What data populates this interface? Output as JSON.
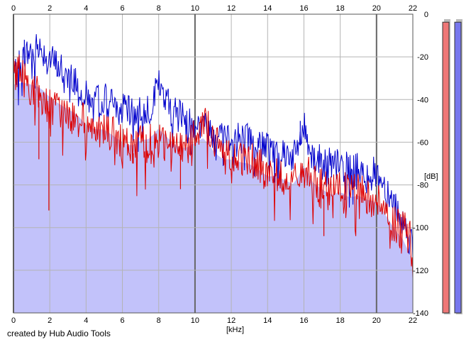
{
  "chart_data": {
    "type": "area",
    "x_unit": "[kHz]",
    "y_unit": "[dB]",
    "xlim": [
      0,
      22
    ],
    "ylim": [
      -140,
      0
    ],
    "x_ticks": [
      0,
      2,
      4,
      6,
      8,
      10,
      12,
      14,
      16,
      18,
      20,
      22
    ],
    "y_ticks": [
      0,
      -20,
      -40,
      -60,
      -80,
      -100,
      -120,
      -140
    ],
    "grid": true,
    "series": [
      {
        "color": "#0000cc",
        "x": [
          0,
          0.5,
          1,
          1.5,
          2,
          2.5,
          3,
          3.5,
          4,
          4.5,
          5,
          5.5,
          6,
          6.5,
          7,
          7.5,
          8,
          8.5,
          9,
          9.5,
          10,
          10.5,
          11,
          11.5,
          12,
          12.5,
          13,
          13.5,
          14,
          14.5,
          15,
          15.5,
          16,
          16.5,
          17,
          17.5,
          18,
          18.5,
          19,
          19.5,
          20,
          20.5,
          21,
          21.5,
          22
        ],
        "values": [
          -28,
          -20,
          -16,
          -15,
          -20,
          -24,
          -27,
          -30,
          -38,
          -40,
          -38,
          -42,
          -44,
          -46,
          -44,
          -43,
          -33,
          -40,
          -46,
          -48,
          -50,
          -52,
          -54,
          -56,
          -56,
          -57,
          -58,
          -60,
          -62,
          -62,
          -64,
          -66,
          -52,
          -66,
          -68,
          -70,
          -70,
          -72,
          -72,
          -74,
          -74,
          -80,
          -88,
          -96,
          -110
        ]
      },
      {
        "color": "#dd0000",
        "x": [
          0,
          0.5,
          1,
          1.5,
          2,
          2.5,
          3,
          3.5,
          4,
          4.5,
          5,
          5.5,
          6,
          6.5,
          7,
          7.5,
          8,
          8.5,
          9,
          9.5,
          10,
          10.5,
          11,
          11.5,
          12,
          12.5,
          13,
          13.5,
          14,
          14.5,
          15,
          15.5,
          16,
          16.5,
          17,
          17.5,
          18,
          18.5,
          19,
          19.5,
          20,
          20.5,
          21,
          21.5,
          22
        ],
        "values": [
          -22,
          -28,
          -34,
          -38,
          -42,
          -44,
          -46,
          -48,
          -50,
          -52,
          -54,
          -56,
          -60,
          -62,
          -58,
          -58,
          -58,
          -60,
          -62,
          -62,
          -54,
          -48,
          -58,
          -64,
          -64,
          -66,
          -66,
          -70,
          -74,
          -74,
          -76,
          -78,
          -72,
          -76,
          -80,
          -84,
          -80,
          -84,
          -82,
          -84,
          -86,
          -92,
          -98,
          -100,
          -106
        ]
      }
    ],
    "spikes": [
      {
        "x": 1.95,
        "value": -92,
        "color": "#dd0000"
      },
      {
        "x": 1.4,
        "value": -68,
        "color": "#dd0000"
      },
      {
        "x": 6.6,
        "value": -70,
        "color": "#dd0000"
      },
      {
        "x": 9.2,
        "value": -82,
        "color": "#dd0000"
      },
      {
        "x": 17.1,
        "value": -104,
        "color": "#dd0000"
      },
      {
        "x": 15.8,
        "value": -50,
        "color": "#0000cc"
      },
      {
        "x": 0.6,
        "value": -12,
        "color": "#0000cc"
      }
    ],
    "level_meters": [
      {
        "color": "#ee7777",
        "level": 0.985
      },
      {
        "color": "#7777ee",
        "level": 0.985
      }
    ]
  },
  "credit": "created by Hub Audio Tools"
}
